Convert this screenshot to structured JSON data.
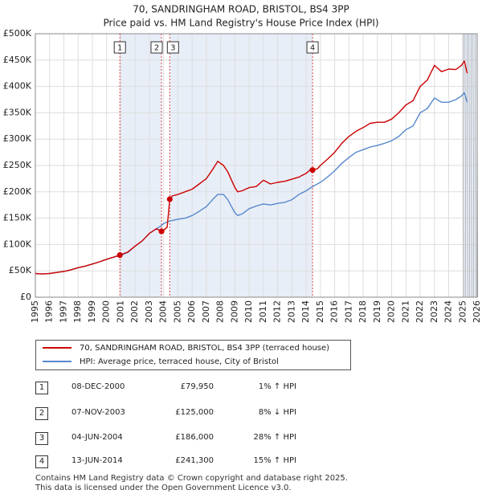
{
  "chart_data": {
    "type": "line",
    "title": "70, SANDRINGHAM ROAD, BRISTOL, BS4 3PP",
    "subtitle": "Price paid vs. HM Land Registry's House Price Index (HPI)",
    "xlim": [
      1995,
      2026
    ],
    "ylim": [
      0,
      500000
    ],
    "x_ticks": [
      1995,
      1996,
      1997,
      1998,
      1999,
      2000,
      2001,
      2002,
      2003,
      2004,
      2005,
      2006,
      2007,
      2008,
      2009,
      2010,
      2011,
      2012,
      2013,
      2014,
      2015,
      2016,
      2017,
      2018,
      2019,
      2020,
      2021,
      2022,
      2023,
      2024,
      2025,
      2026
    ],
    "y_ticks": [
      {
        "value": 0,
        "label": "£0"
      },
      {
        "value": 50000,
        "label": "£50K"
      },
      {
        "value": 100000,
        "label": "£100K"
      },
      {
        "value": 150000,
        "label": "£150K"
      },
      {
        "value": 200000,
        "label": "£200K"
      },
      {
        "value": 250000,
        "label": "£250K"
      },
      {
        "value": 300000,
        "label": "£300K"
      },
      {
        "value": 350000,
        "label": "£350K"
      },
      {
        "value": 400000,
        "label": "£400K"
      },
      {
        "value": 450000,
        "label": "£450K"
      },
      {
        "value": 500000,
        "label": "£500K"
      }
    ],
    "grid": true,
    "series": [
      {
        "name": "70, SANDRINGHAM ROAD, BRISTOL, BS4 3PP (terraced house)",
        "color": "#cc0000",
        "x": [
          1995.0,
          1995.5,
          1996.0,
          1996.5,
          1997.0,
          1997.5,
          1998.0,
          1998.5,
          1999.0,
          1999.5,
          2000.0,
          2000.5,
          2000.93,
          2001.5,
          2002.0,
          2002.5,
          2003.0,
          2003.5,
          2003.85,
          2004.0,
          2004.25,
          2004.43,
          2004.6,
          2005.0,
          2005.5,
          2006.0,
          2006.5,
          2007.0,
          2007.5,
          2007.8,
          2008.2,
          2008.5,
          2009.0,
          2009.2,
          2009.5,
          2010.0,
          2010.5,
          2011.0,
          2011.5,
          2012.0,
          2012.5,
          2013.0,
          2013.5,
          2014.0,
          2014.3,
          2014.45,
          2014.8,
          2015.0,
          2015.5,
          2016.0,
          2016.5,
          2017.0,
          2017.5,
          2018.0,
          2018.5,
          2019.0,
          2019.5,
          2020.0,
          2020.5,
          2021.0,
          2021.5,
          2022.0,
          2022.5,
          2023.0,
          2023.5,
          2024.0,
          2024.5,
          2024.9,
          2025.1,
          2025.3
        ],
        "y": [
          45000,
          44000,
          45000,
          47000,
          49000,
          52000,
          56000,
          59000,
          63000,
          67000,
          72000,
          76000,
          79950,
          86000,
          97000,
          107000,
          121000,
          130000,
          125000,
          127000,
          133000,
          186000,
          192000,
          195000,
          200000,
          205000,
          215000,
          225000,
          245000,
          258000,
          250000,
          238000,
          208000,
          200000,
          202000,
          208000,
          210000,
          222000,
          215000,
          218000,
          220000,
          224000,
          228000,
          235000,
          242000,
          241300,
          244000,
          250000,
          262000,
          275000,
          292000,
          305000,
          315000,
          322000,
          330000,
          332000,
          332000,
          338000,
          350000,
          365000,
          373000,
          400000,
          412000,
          440000,
          428000,
          433000,
          432000,
          440000,
          448000,
          425000
        ]
      },
      {
        "name": "HPI: Average price, terraced house, City of Bristol",
        "color": "#5588cc",
        "x": [
          1995.0,
          1995.5,
          1996.0,
          1996.5,
          1997.0,
          1997.5,
          1998.0,
          1998.5,
          1999.0,
          1999.5,
          2000.0,
          2000.5,
          2000.93,
          2001.5,
          2002.0,
          2002.5,
          2003.0,
          2003.5,
          2003.85,
          2004.0,
          2004.5,
          2005.0,
          2005.5,
          2006.0,
          2006.5,
          2007.0,
          2007.5,
          2007.8,
          2008.2,
          2008.5,
          2009.0,
          2009.2,
          2009.5,
          2010.0,
          2010.5,
          2011.0,
          2011.5,
          2012.0,
          2012.5,
          2013.0,
          2013.5,
          2014.0,
          2014.45,
          2015.0,
          2015.5,
          2016.0,
          2016.5,
          2017.0,
          2017.5,
          2018.0,
          2018.5,
          2019.0,
          2019.5,
          2020.0,
          2020.5,
          2021.0,
          2021.5,
          2022.0,
          2022.5,
          2023.0,
          2023.5,
          2024.0,
          2024.5,
          2024.9,
          2025.1,
          2025.3
        ],
        "y": [
          45000,
          44000,
          45000,
          47000,
          49000,
          52000,
          56000,
          59000,
          63000,
          67000,
          72000,
          76000,
          79000,
          85000,
          97000,
          107000,
          121000,
          130000,
          136000,
          140000,
          145000,
          148000,
          150000,
          155000,
          163000,
          172000,
          187000,
          195000,
          195000,
          185000,
          160000,
          155000,
          158000,
          168000,
          173000,
          177000,
          175000,
          178000,
          180000,
          185000,
          195000,
          202000,
          210000,
          218000,
          228000,
          240000,
          254000,
          265000,
          275000,
          280000,
          285000,
          288000,
          292000,
          297000,
          305000,
          318000,
          325000,
          350000,
          358000,
          378000,
          370000,
          370000,
          375000,
          382000,
          388000,
          370000
        ]
      }
    ],
    "markers": [
      {
        "label": "1",
        "x": 2000.93,
        "y": 79950
      },
      {
        "label": "2",
        "x": 2003.85,
        "y": 125000
      },
      {
        "label": "3",
        "x": 2004.43,
        "y": 186000
      },
      {
        "label": "4",
        "x": 2014.45,
        "y": 241300
      }
    ]
  },
  "legend": {
    "items": [
      {
        "label": "70, SANDRINGHAM ROAD, BRISTOL, BS4 3PP (terraced house)",
        "color": "#cc0000"
      },
      {
        "label": "HPI: Average price, terraced house, City of Bristol",
        "color": "#5588cc"
      }
    ]
  },
  "transactions": [
    {
      "num": "1",
      "date": "08-DEC-2000",
      "price": "£79,950",
      "hpi": "1% ↑ HPI"
    },
    {
      "num": "2",
      "date": "07-NOV-2003",
      "price": "£125,000",
      "hpi": "8% ↓ HPI"
    },
    {
      "num": "3",
      "date": "04-JUN-2004",
      "price": "£186,000",
      "hpi": "28% ↑ HPI"
    },
    {
      "num": "4",
      "date": "13-JUN-2014",
      "price": "£241,300",
      "hpi": "15% ↑ HPI"
    }
  ],
  "footer": {
    "line1": "Contains HM Land Registry data © Crown copyright and database right 2025.",
    "line2": "This data is licensed under the Open Government Licence v3.0."
  },
  "colors": {
    "shade": "#e8eef8",
    "grid": "#dddddd",
    "accent_red": "#cc0000",
    "accent_blue": "#5588cc"
  }
}
